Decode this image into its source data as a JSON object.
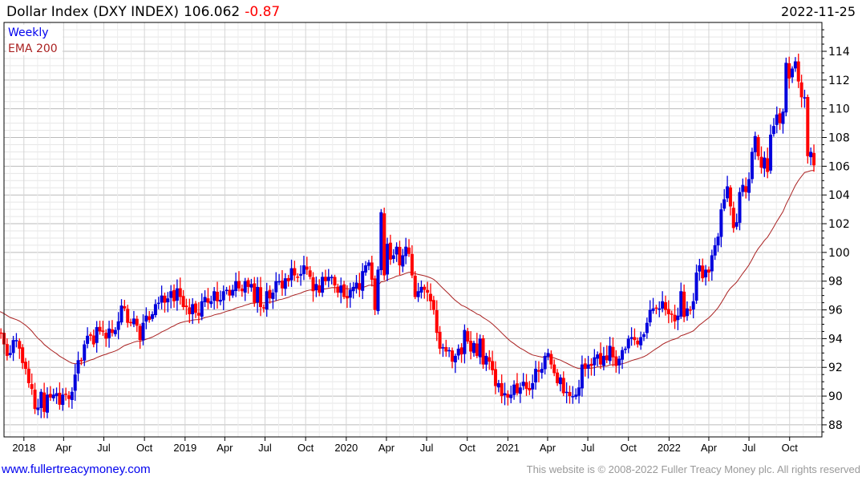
{
  "header": {
    "title": "Dollar Index (DXY INDEX)",
    "last": "106.062",
    "change": "-0.87",
    "date": "2022-11-25"
  },
  "legend": {
    "period": "Weekly",
    "ema": "EMA 200"
  },
  "footer": {
    "site": "www.fullertreacymoney.com",
    "copyright": "This website is © 2008-2022 Fuller Treacy Money plc. All rights reserved"
  },
  "colors": {
    "up": "#0000dd",
    "down": "#ff0000",
    "ema": "#aa2222",
    "legend_weekly": "#0000ee",
    "legend_ema": "#aa2222"
  },
  "chart_data": {
    "type": "candlestick",
    "title": "Dollar Index (DXY INDEX)",
    "frequency": "weekly",
    "start_week": "2017-11-03",
    "ylim": [
      87.2,
      115.7
    ],
    "y_ticks": [
      88,
      90,
      92,
      94,
      96,
      98,
      100,
      102,
      104,
      106,
      108,
      110,
      112,
      114
    ],
    "x_ticks": [
      {
        "label": "2018",
        "date": "2018-01-01"
      },
      {
        "label": "Apr",
        "date": "2018-04-01"
      },
      {
        "label": "Jul",
        "date": "2018-07-01"
      },
      {
        "label": "Oct",
        "date": "2018-10-01"
      },
      {
        "label": "2019",
        "date": "2019-01-01"
      },
      {
        "label": "Apr",
        "date": "2019-04-01"
      },
      {
        "label": "Jul",
        "date": "2019-07-01"
      },
      {
        "label": "Oct",
        "date": "2019-10-01"
      },
      {
        "label": "2020",
        "date": "2020-01-01"
      },
      {
        "label": "Apr",
        "date": "2020-04-01"
      },
      {
        "label": "Jul",
        "date": "2020-07-01"
      },
      {
        "label": "Oct",
        "date": "2020-10-01"
      },
      {
        "label": "2021",
        "date": "2021-01-01"
      },
      {
        "label": "Apr",
        "date": "2021-04-01"
      },
      {
        "label": "Jul",
        "date": "2021-07-01"
      },
      {
        "label": "Oct",
        "date": "2021-10-01"
      },
      {
        "label": "2022",
        "date": "2022-01-01"
      },
      {
        "label": "Apr",
        "date": "2022-04-01"
      },
      {
        "label": "Jul",
        "date": "2022-07-01"
      },
      {
        "label": "Oct",
        "date": "2022-10-01"
      }
    ],
    "ema_period_weeks": 40,
    "ema_start": 96.0,
    "closes": [
      94.5,
      94.4,
      93.6,
      92.8,
      93.0,
      93.9,
      93.9,
      93.3,
      92.3,
      91.9,
      90.9,
      90.5,
      89.1,
      89.2,
      90.3,
      88.9,
      90.1,
      89.9,
      90.1,
      90.2,
      89.4,
      90.1,
      90.1,
      89.8,
      90.3,
      91.5,
      92.5,
      92.5,
      93.6,
      94.2,
      94.2,
      93.6,
      94.8,
      94.5,
      94.5,
      94.0,
      94.7,
      94.4,
      94.6,
      95.2,
      96.3,
      96.1,
      95.1,
      95.1,
      95.4,
      94.9,
      93.9,
      95.1,
      95.6,
      95.3,
      95.7,
      96.4,
      96.5,
      97.0,
      96.5,
      96.8,
      97.3,
      96.6,
      97.5,
      96.9,
      96.2,
      96.2,
      95.7,
      96.4,
      95.8,
      95.6,
      96.6,
      96.9,
      96.5,
      96.6,
      97.3,
      96.6,
      96.7,
      97.3,
      97.4,
      97.0,
      97.4,
      98.0,
      97.5,
      97.3,
      98.0,
      97.6,
      97.8,
      96.5,
      97.6,
      96.2,
      96.1,
      97.3,
      96.8,
      97.2,
      98.0,
      98.0,
      97.5,
      98.2,
      98.0,
      98.9,
      98.4,
      98.3,
      98.5,
      99.1,
      98.8,
      98.3,
      97.3,
      97.8,
      97.2,
      98.3,
      98.0,
      98.3,
      98.3,
      97.7,
      97.2,
      97.7,
      96.9,
      96.8,
      97.4,
      97.6,
      97.9,
      97.4,
      98.7,
      99.1,
      99.3,
      98.1,
      96.0,
      98.8,
      102.8,
      98.4,
      100.6,
      99.5,
      99.8,
      100.4,
      99.1,
      99.8,
      100.4,
      99.9,
      98.4,
      96.9,
      97.3,
      97.6,
      97.4,
      97.2,
      96.6,
      96.0,
      94.4,
      93.3,
      93.4,
      93.1,
      93.2,
      92.4,
      92.8,
      93.3,
      92.9,
      94.6,
      93.8,
      93.1,
      93.7,
      92.8,
      94.0,
      92.2,
      92.8,
      92.4,
      91.8,
      90.7,
      90.9,
      90.0,
      90.2,
      89.9,
      90.1,
      90.8,
      90.2,
      90.6,
      91.0,
      90.5,
      90.4,
      90.9,
      91.9,
      91.7,
      91.9,
      92.8,
      93.0,
      92.2,
      91.6,
      90.9,
      91.3,
      90.2,
      90.3,
      90.0,
      90.0,
      90.1,
      90.6,
      92.2,
      91.9,
      92.2,
      92.1,
      92.7,
      92.9,
      92.2,
      92.8,
      92.5,
      93.5,
      92.7,
      92.1,
      92.6,
      93.2,
      93.3,
      94.0,
      94.1,
      93.9,
      93.6,
      94.1,
      94.3,
      95.1,
      96.0,
      96.1,
      96.1,
      96.1,
      96.6,
      96.0,
      95.7,
      95.7,
      95.2,
      95.6,
      97.3,
      95.5,
      96.1,
      96.0,
      96.6,
      98.6,
      99.1,
      98.2,
      98.8,
      98.6,
      99.8,
      100.5,
      101.1,
      103.0,
      103.7,
      104.6,
      103.2,
      101.7,
      102.1,
      104.2,
      104.7,
      104.2,
      105.1,
      107.0,
      108.1,
      106.7,
      105.9,
      106.6,
      105.6,
      108.2,
      108.8,
      109.6,
      109.0,
      109.8,
      113.2,
      112.1,
      112.8,
      113.3,
      111.9,
      110.8,
      110.8,
      106.7,
      107.0,
      106.062
    ]
  }
}
